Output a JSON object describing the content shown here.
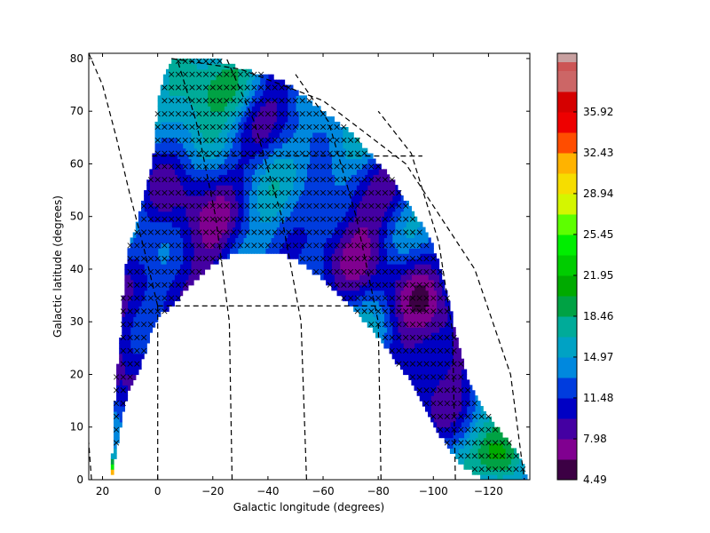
{
  "chart_data": {
    "type": "heatmap",
    "title": "",
    "xlabel": "Galactic longitude (degrees)",
    "ylabel": "Galactic latitude (degrees)",
    "xlim": [
      25,
      -135
    ],
    "ylim": [
      0,
      81
    ],
    "x_ticks": [
      20,
      0,
      -20,
      -40,
      -60,
      -80,
      -100,
      -120
    ],
    "x_tick_labels": [
      "20",
      "0",
      "−20",
      "−40",
      "−60",
      "−80",
      "−100",
      "−120"
    ],
    "y_ticks": [
      0,
      10,
      20,
      30,
      40,
      50,
      60,
      70,
      80
    ],
    "y_tick_labels": [
      "0",
      "10",
      "20",
      "30",
      "40",
      "50",
      "60",
      "70",
      "80"
    ],
    "grid": false,
    "colorbar": {
      "range": [
        4.49,
        39.41
      ],
      "levels": 20,
      "tick_values": [
        4.49,
        7.98,
        11.48,
        14.97,
        18.46,
        21.95,
        25.45,
        28.94,
        32.43,
        35.92
      ],
      "tick_labels": [
        "4.49",
        "7.98",
        "11.48",
        "14.97",
        "18.46",
        "21.95",
        "25.45",
        "28.94",
        "32.43",
        "35.92"
      ],
      "colormap": "nipy_spectral",
      "extend_color": "#c8a0a0"
    },
    "survey_footprint": {
      "outline_lon": [
        17,
        16,
        15,
        13,
        12,
        10,
        8,
        6,
        3,
        1,
        0,
        -3,
        -6,
        -10,
        -15,
        -20,
        -25,
        -30,
        -38,
        -45,
        -50,
        -55,
        -60,
        -65,
        -70,
        -75,
        -80,
        -85,
        -90,
        -95,
        -100,
        -103,
        -106,
        -108,
        -110,
        -112,
        -115,
        -120,
        -126,
        -132,
        -134,
        -134,
        -130,
        -125,
        -118,
        -110,
        -100,
        -90,
        -80,
        -70,
        -60,
        -50,
        -40,
        -30,
        -20,
        -10,
        -5,
        0,
        3,
        6,
        10,
        13,
        15,
        17
      ],
      "outline_lat": [
        0,
        10,
        20,
        30,
        40,
        45,
        48,
        52,
        58,
        64,
        72,
        78,
        80,
        80,
        80,
        80,
        79,
        78,
        77,
        76,
        74,
        72,
        70,
        68,
        66,
        63,
        60,
        57,
        53,
        49,
        44,
        39,
        33,
        28,
        24,
        20,
        16,
        12,
        8,
        4,
        0,
        0,
        0,
        0,
        0,
        3,
        10,
        20,
        27,
        33,
        38,
        42,
        43.5,
        43.5,
        41,
        36,
        33,
        31,
        27,
        22,
        18,
        12,
        5,
        0
      ],
      "field_spacing_deg": 2.5
    }
  }
}
